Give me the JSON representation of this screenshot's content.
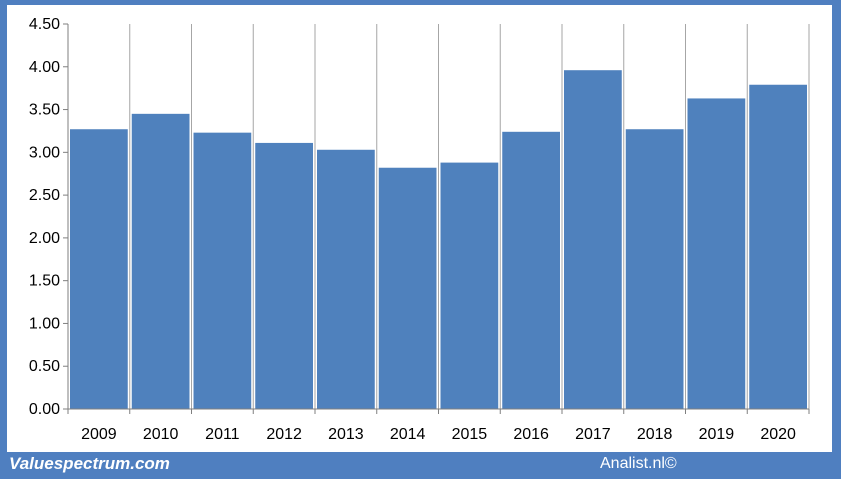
{
  "chart_data": {
    "type": "bar",
    "categories": [
      "2009",
      "2010",
      "2011",
      "2012",
      "2013",
      "2014",
      "2015",
      "2016",
      "2017",
      "2018",
      "2019",
      "2020"
    ],
    "values": [
      3.27,
      3.45,
      3.23,
      3.11,
      3.03,
      2.82,
      2.88,
      3.24,
      3.96,
      3.27,
      3.63,
      3.79
    ],
    "ylim": [
      0,
      4.5
    ],
    "yticks": [
      "0.00",
      "0.50",
      "1.00",
      "1.50",
      "2.00",
      "2.50",
      "3.00",
      "3.50",
      "4.00",
      "4.50"
    ],
    "grid": "vertical",
    "bar_color": "#4f81bd"
  },
  "footer": {
    "left_text": "Valuespectrum.com",
    "right_text": "Analist.nl©"
  }
}
